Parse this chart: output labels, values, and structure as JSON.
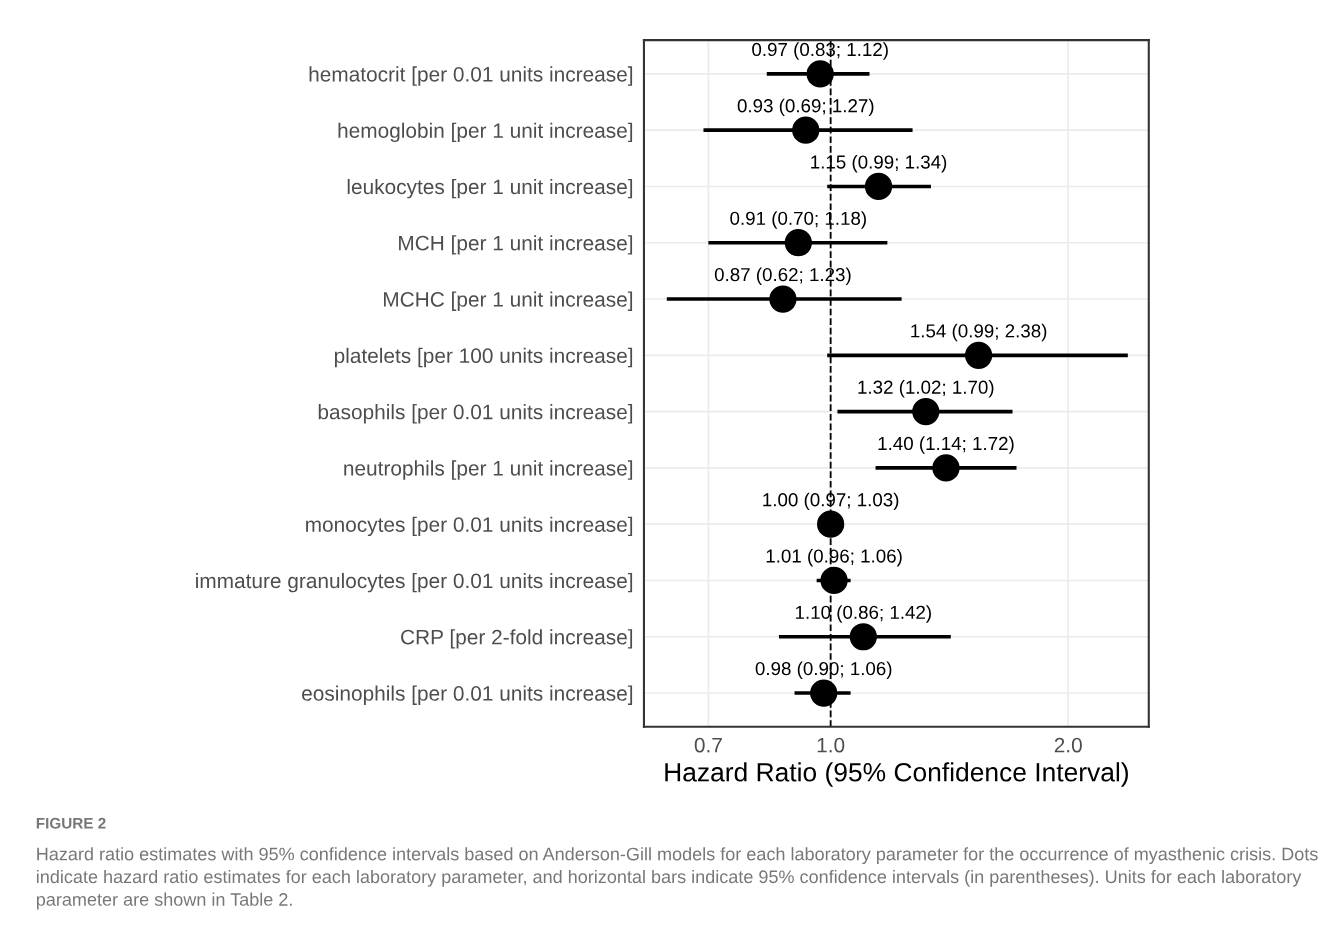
{
  "chart_data": {
    "type": "scatter",
    "orientation": "horizontal",
    "log": "x",
    "xlabel": "Hazard Ratio (95% Confidence Interval)",
    "categories": [
      "hematocrit [per 0.01 units increase]",
      "hemoglobin [per 1 unit increase]",
      "leukocytes [per 1 unit increase]",
      "MCH [per 1 unit increase]",
      "MCHC [per 1 unit increase]",
      "platelets [per 100 units increase]",
      "basophils [per 0.01 units increase]",
      "neutrophils [per 1 unit increase]",
      "monocytes [per 0.01 units increase]",
      "immature granulocytes [per 0.01 units increase]",
      "CRP [per 2-fold increase]",
      "eosinophils [per 0.01 units increase]"
    ],
    "values": [
      0.97,
      0.93,
      1.15,
      0.91,
      0.87,
      1.54,
      1.32,
      1.4,
      1.0,
      1.01,
      1.1,
      0.98
    ],
    "errors": [
      [
        0.83,
        1.12
      ],
      [
        0.69,
        1.27
      ],
      [
        0.99,
        1.34
      ],
      [
        0.7,
        1.18
      ],
      [
        0.62,
        1.23
      ],
      [
        0.99,
        2.38
      ],
      [
        1.02,
        1.7
      ],
      [
        1.14,
        1.72
      ],
      [
        0.97,
        1.03
      ],
      [
        0.96,
        1.06
      ],
      [
        0.86,
        1.42
      ],
      [
        0.9,
        1.06
      ]
    ],
    "value_labels": [
      "0.97 (0.83; 1.12)",
      "0.93 (0.69; 1.27)",
      "1.15 (0.99; 1.34)",
      "0.91 (0.70; 1.18)",
      "0.87 (0.62; 1.23)",
      "1.54 (0.99; 2.38)",
      "1.32 (1.02; 1.70)",
      "1.40 (1.14; 1.72)",
      "1.00 (0.97; 1.03)",
      "1.01 (0.96; 1.06)",
      "1.10 (0.86; 1.42)",
      "0.98 (0.90; 1.06)"
    ],
    "color": "#000000",
    "marker": "circle",
    "grid": true,
    "xlim": [
      0.58,
      2.53
    ],
    "xticks": [
      0.7,
      {
        "value": 1,
        "label": "1.0"
      },
      {
        "value": 2,
        "label": "2.0"
      }
    ],
    "ref_lines": [
      {
        "axis": "x",
        "value": 1,
        "line_style": "dashed",
        "color": "#000000"
      }
    ],
    "annotations": [
      "FIGURE 2",
      "Hazard ratio estimates with 95% confidence intervals based on Anderson-Gill models for each laboratory parameter for the occurrence of myasthenic crisis. Dots indicate hazard ratio estimates for each laboratory parameter, and horizontal bars indicate 95% confidence intervals (in parentheses). Units for each laboratory parameter are shown in Table 2."
    ]
  }
}
